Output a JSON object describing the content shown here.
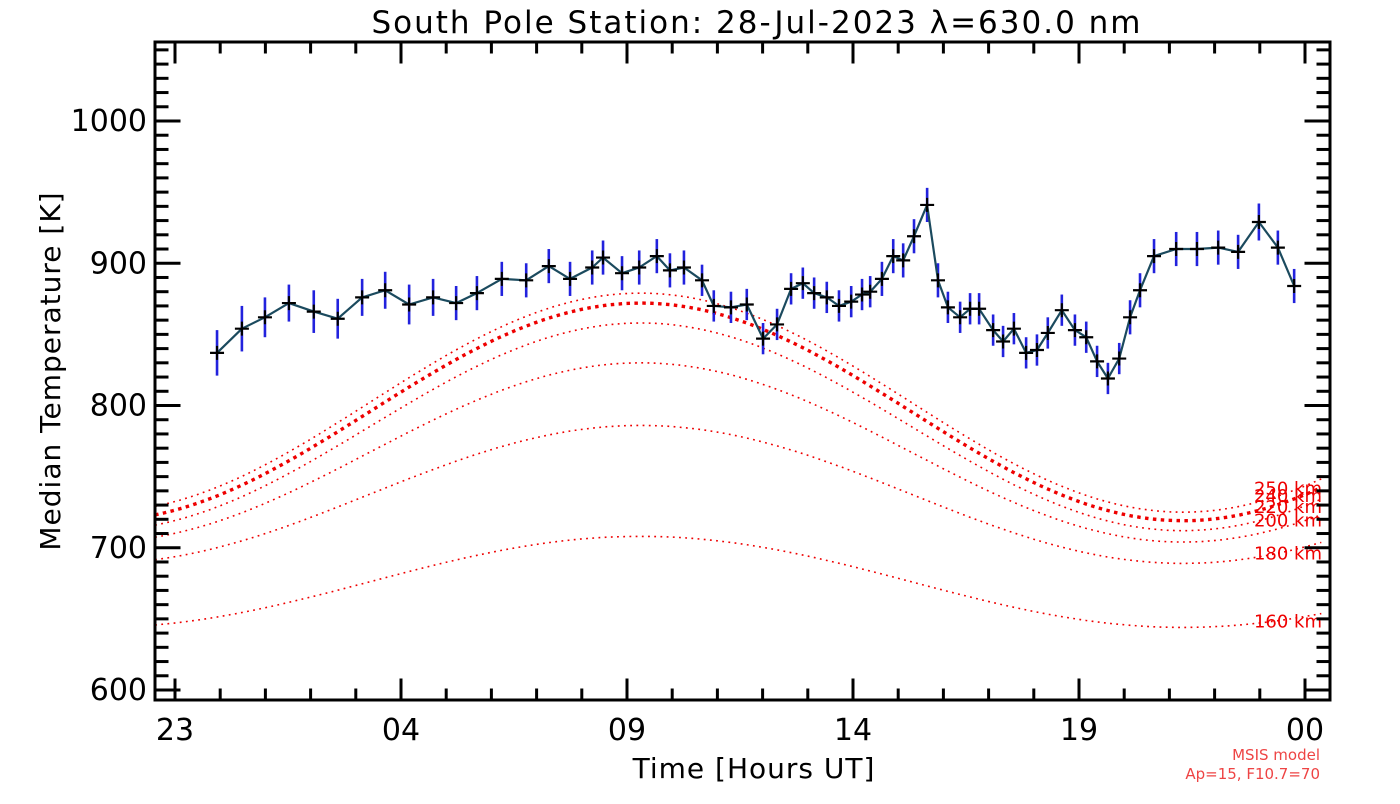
{
  "chart_data": {
    "type": "line",
    "title": "South Pole Station: 28-Jul-2023 λ=630.0 nm",
    "xlabel": "Time [Hours UT]",
    "ylabel": "Median Temperature [K]",
    "x_ticks": [
      {
        "hour": 23,
        "label": "23"
      },
      {
        "hour": 28,
        "label": "04"
      },
      {
        "hour": 33,
        "label": "09"
      },
      {
        "hour": 38,
        "label": "14"
      },
      {
        "hour": 43,
        "label": "19"
      },
      {
        "hour": 48,
        "label": "00"
      }
    ],
    "x_minor_step_hours": 1,
    "xlim_hours": [
      22.56,
      48.55
    ],
    "y_ticks": [
      600,
      700,
      800,
      900,
      1000
    ],
    "y_minor_step": 10,
    "ylim": [
      593,
      1055
    ],
    "grid": false,
    "legend_position": "none",
    "series": {
      "name": "median temperature with error bars",
      "points_format": [
        "hour_ut_axis",
        "temperature_K",
        "error_K"
      ],
      "points": [
        [
          23.93,
          837,
          16
        ],
        [
          24.48,
          854,
          16
        ],
        [
          24.99,
          862,
          14
        ],
        [
          25.52,
          872,
          13
        ],
        [
          26.07,
          866,
          15
        ],
        [
          26.6,
          861,
          14
        ],
        [
          27.14,
          876,
          13
        ],
        [
          27.65,
          881,
          13
        ],
        [
          28.18,
          871,
          14
        ],
        [
          28.71,
          876,
          13
        ],
        [
          29.22,
          872,
          12
        ],
        [
          29.68,
          879,
          12
        ],
        [
          30.23,
          889,
          12
        ],
        [
          30.77,
          888,
          12
        ],
        [
          31.27,
          898,
          12
        ],
        [
          31.74,
          889,
          12
        ],
        [
          32.23,
          897,
          12
        ],
        [
          32.47,
          904,
          12
        ],
        [
          32.89,
          893,
          12
        ],
        [
          33.27,
          897,
          12
        ],
        [
          33.66,
          905,
          12
        ],
        [
          33.95,
          895,
          12
        ],
        [
          34.26,
          897,
          12
        ],
        [
          34.66,
          888,
          11
        ],
        [
          34.92,
          870,
          11
        ],
        [
          35.3,
          869,
          11
        ],
        [
          35.65,
          871,
          11
        ],
        [
          36.01,
          847,
          11
        ],
        [
          36.32,
          857,
          11
        ],
        [
          36.63,
          882,
          11
        ],
        [
          36.89,
          886,
          11
        ],
        [
          37.14,
          879,
          11
        ],
        [
          37.42,
          876,
          11
        ],
        [
          37.69,
          870,
          11
        ],
        [
          37.96,
          873,
          11
        ],
        [
          38.2,
          878,
          11
        ],
        [
          38.38,
          880,
          11
        ],
        [
          38.64,
          889,
          12
        ],
        [
          38.89,
          905,
          12
        ],
        [
          39.11,
          902,
          12
        ],
        [
          39.35,
          919,
          12
        ],
        [
          39.64,
          941,
          12
        ],
        [
          39.88,
          888,
          12
        ],
        [
          40.1,
          869,
          11
        ],
        [
          40.37,
          862,
          11
        ],
        [
          40.59,
          868,
          11
        ],
        [
          40.79,
          868,
          11
        ],
        [
          41.1,
          853,
          11
        ],
        [
          41.32,
          845,
          11
        ],
        [
          41.56,
          854,
          11
        ],
        [
          41.83,
          837,
          11
        ],
        [
          42.07,
          839,
          11
        ],
        [
          42.31,
          851,
          11
        ],
        [
          42.62,
          867,
          11
        ],
        [
          42.91,
          853,
          11
        ],
        [
          43.16,
          848,
          11
        ],
        [
          43.4,
          831,
          11
        ],
        [
          43.64,
          819,
          11
        ],
        [
          43.89,
          833,
          11
        ],
        [
          44.13,
          862,
          12
        ],
        [
          44.35,
          881,
          12
        ],
        [
          44.66,
          905,
          12
        ],
        [
          45.15,
          910,
          12
        ],
        [
          45.61,
          910,
          12
        ],
        [
          46.08,
          911,
          12
        ],
        [
          46.52,
          908,
          12
        ],
        [
          46.98,
          929,
          13
        ],
        [
          47.4,
          911,
          12
        ],
        [
          47.76,
          884,
          12
        ]
      ]
    },
    "model_curves": [
      {
        "altitude_km": 250,
        "label": "250 km",
        "mean": 802.0,
        "amp": 77.0,
        "label_T": 741.5,
        "bold": false
      },
      {
        "altitude_km": 240,
        "label": "240 km",
        "mean": 795.5,
        "amp": 76.5,
        "label_T": 736.5,
        "bold": true
      },
      {
        "altitude_km": 220,
        "label": "220 km",
        "mean": 785.0,
        "amp": 73.0,
        "label_T": 728.5,
        "bold": false
      },
      {
        "altitude_km": 200,
        "label": "200 km",
        "mean": 767.0,
        "amp": 63.0,
        "label_T": 719.0,
        "bold": false
      },
      {
        "altitude_km": 180,
        "label": "180 km",
        "mean": 737.5,
        "amp": 48.5,
        "label_T": 696.0,
        "bold": false
      },
      {
        "altitude_km": 160,
        "label": "160 km",
        "mean": 676.0,
        "amp": 32.0,
        "label_T": 648.0,
        "bold": false
      }
    ],
    "model_peak_hour_ut": 9.3,
    "annotation": {
      "line1": "MSIS model",
      "line2": "Ap=15, F10.7=70"
    },
    "colors": {
      "frame": "#000000",
      "data_line": "#1b4a5e",
      "error_bar": "#2222dd",
      "marker": "#000000",
      "model": "#ee0000",
      "annotation": "#ee4444",
      "text": "#000000"
    }
  }
}
